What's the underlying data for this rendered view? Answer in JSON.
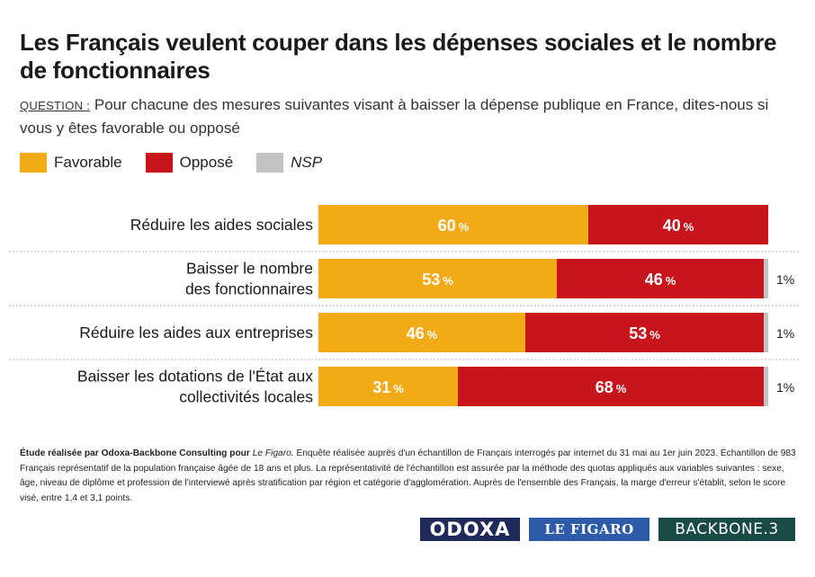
{
  "title": "Les Français veulent couper dans les dépenses sociales et le nombre de fonctionnaires",
  "question": {
    "label": "QUESTION :",
    "text": "Pour chacune des mesures suivantes visant à baisser la dépense publique en France, dites-nous si vous y êtes favorable ou opposé"
  },
  "legend": [
    {
      "label": "Favorable",
      "color": "#f2aa17"
    },
    {
      "label": "Opposé",
      "color": "#c8141b"
    },
    {
      "label": "NSP",
      "color": "#c2c2c2"
    }
  ],
  "chart_data": {
    "type": "bar",
    "orientation": "horizontal",
    "stacked": true,
    "value_suffix": "%",
    "categories": [
      "Réduire les aides sociales",
      "Baisser le nombre des fonctionnaires",
      "Réduire les aides aux entreprises",
      "Baisser les dotations de l'État aux collectivités locales"
    ],
    "series": [
      {
        "name": "Favorable",
        "color": "#f2aa17",
        "values": [
          60,
          53,
          46,
          31
        ]
      },
      {
        "name": "Opposé",
        "color": "#c8141b",
        "values": [
          40,
          46,
          53,
          68
        ]
      },
      {
        "name": "NSP",
        "color": "#c2c2c2",
        "values": [
          0,
          1,
          1,
          1
        ]
      }
    ],
    "xlim": [
      0,
      100
    ],
    "grid": false
  },
  "footnote": {
    "bold": "Étude réalisée par Odoxa-Backbone Consulting pour",
    "italic": "Le Figaro.",
    "text": "Enquête réalisée auprès d'un échantillon de Français interrogés par internet du 31 mai au 1er juin 2023. Échantillon de 983 Français représentatif de la population française âgée de 18 ans et plus. La représentativité de l'échantillon est assurée par la méthode des quotas appliqués aux variables suivantes : sexe, âge, niveau de diplôme et profession de l'interviewé après stratification par région et catégorie d'agglomération. Auprès de l'ensemble des Français, la marge d'erreur s'établit, selon le score visé, entre 1,4 et 3,1 points."
  },
  "logos": {
    "odoxa": "ODOXA",
    "figaro": "LE FIGARO",
    "backbone": "BACKBONE.3"
  }
}
